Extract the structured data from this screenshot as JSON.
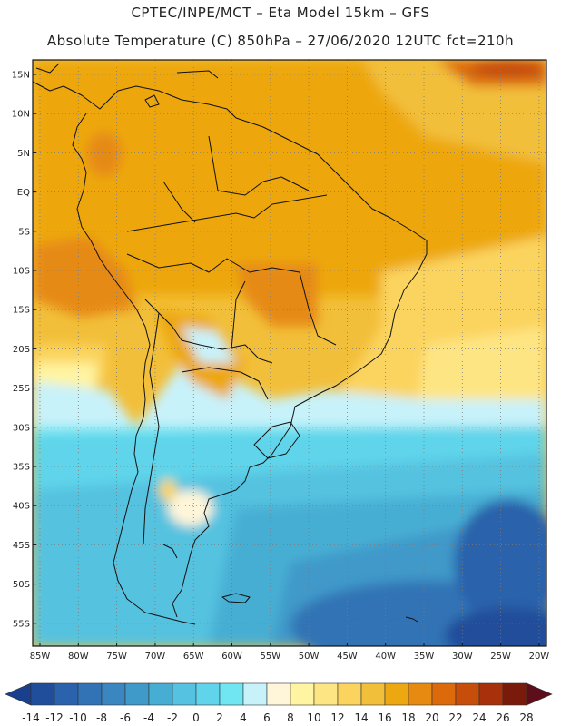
{
  "header": {
    "line1": "CPTEC/INPE/MCT –   Eta Model 15km – GFS",
    "line2": "Absolute Temperature (C) 850hPa – 27/06/2020 12UTC fct=210h"
  },
  "map": {
    "lat_labels": [
      "15N",
      "10N",
      "5N",
      "EQ",
      "5S",
      "10S",
      "15S",
      "20S",
      "25S",
      "30S",
      "35S",
      "40S",
      "45S",
      "50S",
      "55S"
    ],
    "lon_labels": [
      "85W",
      "80W",
      "75W",
      "70W",
      "65W",
      "60W",
      "55W",
      "50W",
      "45W",
      "40W",
      "35W",
      "30W",
      "25W",
      "20W"
    ]
  },
  "colorbar": {
    "labels": [
      "-14",
      "-12",
      "-10",
      "-8",
      "-6",
      "-4",
      "-2",
      "0",
      "2",
      "4",
      "6",
      "8",
      "10",
      "12",
      "14",
      "16",
      "18",
      "20",
      "22",
      "24",
      "26",
      "28"
    ],
    "colors": [
      "#1a3f8c",
      "#214e9a",
      "#2a62ab",
      "#3173b5",
      "#3a86c0",
      "#3f99c9",
      "#47aed3",
      "#54c2e0",
      "#5fd4ea",
      "#6fe6f2",
      "#c8f2fa",
      "#fff6d9",
      "#fff4a1",
      "#fee583",
      "#fbd45f",
      "#f2bf3a",
      "#eda711",
      "#e68a12",
      "#dc6a0b",
      "#c64e0a",
      "#a8300a",
      "#7a1a0a",
      "#5e0d1a"
    ]
  }
}
